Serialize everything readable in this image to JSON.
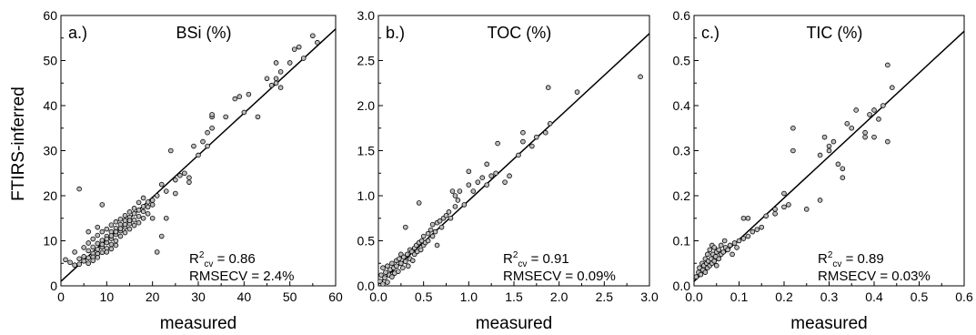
{
  "chart_data": [
    {
      "type": "scatter",
      "panel_label": "a.)",
      "title": "BSi (%)",
      "xlabel": "measured",
      "ylabel": "FTIRS-inferred",
      "xlim": [
        0,
        60
      ],
      "ylim": [
        0,
        60
      ],
      "xticks": [
        "0",
        "10",
        "20",
        "30",
        "40",
        "50",
        "60"
      ],
      "yticks": [
        "0",
        "10",
        "20",
        "30",
        "40",
        "50",
        "60"
      ],
      "fit_line": [
        [
          0,
          1.0
        ],
        [
          60,
          57.0
        ]
      ],
      "stat_r2_base": "R",
      "stat_r2_sup": "2",
      "stat_r2_sub": "cv",
      "stat_r2_value": " = 0.86",
      "stat_rmse": "RMSECV = 2.4%",
      "points": [
        [
          1,
          5.8
        ],
        [
          2,
          5.2
        ],
        [
          3,
          4.6
        ],
        [
          3,
          7.5
        ],
        [
          4,
          6.0
        ],
        [
          4,
          21.5
        ],
        [
          4,
          4.8
        ],
        [
          5,
          6.5
        ],
        [
          5,
          5.5
        ],
        [
          5,
          8.5
        ],
        [
          6,
          6.2
        ],
        [
          6,
          7.8
        ],
        [
          6,
          5.0
        ],
        [
          6,
          9.5
        ],
        [
          6,
          12.0
        ],
        [
          7,
          7.2
        ],
        [
          7,
          8.6
        ],
        [
          7,
          6.4
        ],
        [
          7,
          10.4
        ],
        [
          7,
          5.6
        ],
        [
          8,
          8.1
        ],
        [
          8,
          9.4
        ],
        [
          8,
          7.1
        ],
        [
          8,
          11.2
        ],
        [
          8,
          6.3
        ],
        [
          8,
          13.0
        ],
        [
          9,
          8.6
        ],
        [
          9,
          10.1
        ],
        [
          9,
          7.4
        ],
        [
          9,
          12.0
        ],
        [
          9,
          9.2
        ],
        [
          9,
          18.0
        ],
        [
          10,
          9.6
        ],
        [
          10,
          11.0
        ],
        [
          10,
          8.3
        ],
        [
          10,
          12.6
        ],
        [
          10,
          10.4
        ],
        [
          10,
          7.5
        ],
        [
          11,
          10.5
        ],
        [
          11,
          12.0
        ],
        [
          11,
          9.2
        ],
        [
          11,
          13.5
        ],
        [
          11,
          11.1
        ],
        [
          11,
          8.2
        ],
        [
          12,
          11.4
        ],
        [
          12,
          12.8
        ],
        [
          12,
          10.0
        ],
        [
          12,
          14.2
        ],
        [
          12,
          12.0
        ],
        [
          12,
          9.0
        ],
        [
          13,
          12.2
        ],
        [
          13,
          13.6
        ],
        [
          13,
          11.0
        ],
        [
          13,
          14.8
        ],
        [
          13,
          12.7
        ],
        [
          14,
          13.0
        ],
        [
          14,
          14.5
        ],
        [
          14,
          11.8
        ],
        [
          14,
          15.6
        ],
        [
          14,
          13.6
        ],
        [
          15,
          13.8
        ],
        [
          15,
          15.2
        ],
        [
          15,
          12.6
        ],
        [
          15,
          16.4
        ],
        [
          15,
          14.5
        ],
        [
          16,
          14.6
        ],
        [
          16,
          16.0
        ],
        [
          16,
          13.4
        ],
        [
          16,
          17.2
        ],
        [
          17,
          15.4
        ],
        [
          17,
          16.8
        ],
        [
          17,
          14.0
        ],
        [
          17,
          18.5
        ],
        [
          18,
          16.5
        ],
        [
          18,
          15.0
        ],
        [
          18,
          19.5
        ],
        [
          18,
          17.6
        ],
        [
          19,
          17.5
        ],
        [
          19,
          16.0
        ],
        [
          19,
          18.6
        ],
        [
          20,
          15.0
        ],
        [
          20,
          18.0
        ],
        [
          20,
          19.0
        ],
        [
          21,
          7.5
        ],
        [
          21,
          20.0
        ],
        [
          22,
          11.0
        ],
        [
          22,
          22.5
        ],
        [
          23,
          21.0
        ],
        [
          23,
          15.0
        ],
        [
          24,
          30.0
        ],
        [
          25,
          20.5
        ],
        [
          25,
          23.5
        ],
        [
          26,
          24.5
        ],
        [
          27,
          25.0
        ],
        [
          28,
          23.0
        ],
        [
          28,
          24.0
        ],
        [
          29,
          31.0
        ],
        [
          30,
          29.0
        ],
        [
          31,
          32.0
        ],
        [
          32,
          31.0
        ],
        [
          32,
          34.0
        ],
        [
          33,
          35.0
        ],
        [
          33,
          37.5
        ],
        [
          33,
          38.0
        ],
        [
          36,
          37.5
        ],
        [
          38,
          41.5
        ],
        [
          39,
          42.0
        ],
        [
          40,
          38.5
        ],
        [
          41,
          42.5
        ],
        [
          43,
          37.5
        ],
        [
          45,
          46.0
        ],
        [
          46,
          44.5
        ],
        [
          47,
          46.0
        ],
        [
          47,
          49.5
        ],
        [
          47,
          45.0
        ],
        [
          48,
          47.5
        ],
        [
          48,
          44.0
        ],
        [
          50,
          49.5
        ],
        [
          51,
          52.5
        ],
        [
          52,
          53.0
        ],
        [
          53,
          50.5
        ],
        [
          55,
          55.5
        ],
        [
          56,
          54.0
        ]
      ]
    },
    {
      "type": "scatter",
      "panel_label": "b.)",
      "title": "TOC (%)",
      "xlabel": "measured",
      "ylabel": "",
      "xlim": [
        0,
        3.0
      ],
      "ylim": [
        0,
        3.0
      ],
      "xticks": [
        "0.0",
        "0.5",
        "1.0",
        "1.5",
        "2.0",
        "2.5",
        "3.0"
      ],
      "yticks": [
        "0.0",
        "0.5",
        "1.0",
        "1.5",
        "2.0",
        "2.5",
        "3.0"
      ],
      "fit_line": [
        [
          0,
          0.02
        ],
        [
          3.0,
          2.8
        ]
      ],
      "stat_r2_base": "R",
      "stat_r2_sup": "2",
      "stat_r2_sub": "cv",
      "stat_r2_value": " = 0.91",
      "stat_rmse": "RMSECV = 0.09%",
      "points": [
        [
          0.02,
          0.05
        ],
        [
          0.03,
          0.12
        ],
        [
          0.05,
          0.02
        ],
        [
          0.05,
          0.2
        ],
        [
          0.07,
          0.09
        ],
        [
          0.08,
          0.15
        ],
        [
          0.1,
          0.04
        ],
        [
          0.1,
          0.22
        ],
        [
          0.12,
          0.12
        ],
        [
          0.13,
          0.18
        ],
        [
          0.15,
          0.1
        ],
        [
          0.15,
          0.25
        ],
        [
          0.17,
          0.2
        ],
        [
          0.18,
          0.14
        ],
        [
          0.2,
          0.28
        ],
        [
          0.2,
          0.22
        ],
        [
          0.22,
          0.16
        ],
        [
          0.23,
          0.3
        ],
        [
          0.25,
          0.25
        ],
        [
          0.25,
          0.35
        ],
        [
          0.27,
          0.2
        ],
        [
          0.28,
          0.32
        ],
        [
          0.3,
          0.27
        ],
        [
          0.3,
          0.65
        ],
        [
          0.32,
          0.35
        ],
        [
          0.33,
          0.22
        ],
        [
          0.35,
          0.4
        ],
        [
          0.35,
          0.3
        ],
        [
          0.37,
          0.38
        ],
        [
          0.38,
          0.28
        ],
        [
          0.4,
          0.42
        ],
        [
          0.4,
          0.35
        ],
        [
          0.42,
          0.45
        ],
        [
          0.43,
          0.38
        ],
        [
          0.45,
          0.92
        ],
        [
          0.45,
          0.48
        ],
        [
          0.47,
          0.4
        ],
        [
          0.48,
          0.5
        ],
        [
          0.5,
          0.45
        ],
        [
          0.5,
          0.55
        ],
        [
          0.52,
          0.48
        ],
        [
          0.55,
          0.58
        ],
        [
          0.55,
          0.5
        ],
        [
          0.58,
          0.62
        ],
        [
          0.6,
          0.55
        ],
        [
          0.6,
          0.68
        ],
        [
          0.63,
          0.6
        ],
        [
          0.65,
          0.7
        ],
        [
          0.65,
          0.45
        ],
        [
          0.68,
          0.72
        ],
        [
          0.7,
          0.65
        ],
        [
          0.72,
          0.75
        ],
        [
          0.75,
          0.78
        ],
        [
          0.78,
          0.82
        ],
        [
          0.8,
          0.75
        ],
        [
          0.82,
          1.05
        ],
        [
          0.85,
          0.88
        ],
        [
          0.85,
          1.0
        ],
        [
          0.88,
          0.95
        ],
        [
          0.9,
          1.05
        ],
        [
          0.95,
          0.9
        ],
        [
          1.0,
          1.27
        ],
        [
          1.0,
          1.12
        ],
        [
          1.05,
          1.05
        ],
        [
          1.1,
          1.15
        ],
        [
          1.15,
          1.2
        ],
        [
          1.2,
          1.12
        ],
        [
          1.2,
          1.35
        ],
        [
          1.25,
          1.22
        ],
        [
          1.3,
          1.25
        ],
        [
          1.32,
          1.58
        ],
        [
          1.4,
          1.15
        ],
        [
          1.45,
          1.22
        ],
        [
          1.55,
          1.45
        ],
        [
          1.6,
          1.7
        ],
        [
          1.6,
          1.6
        ],
        [
          1.7,
          1.55
        ],
        [
          1.75,
          1.65
        ],
        [
          1.85,
          1.7
        ],
        [
          1.88,
          2.2
        ],
        [
          1.9,
          1.8
        ],
        [
          2.2,
          2.15
        ],
        [
          2.9,
          2.32
        ]
      ]
    },
    {
      "type": "scatter",
      "panel_label": "c.)",
      "title": "TIC (%)",
      "xlabel": "measured",
      "ylabel": "",
      "xlim": [
        0,
        0.6
      ],
      "ylim": [
        0,
        0.6
      ],
      "xticks": [
        "0.0",
        "0.1",
        "0.2",
        "0.3",
        "0.4",
        "0.5",
        "0.6"
      ],
      "yticks": [
        "0.0",
        "0.1",
        "0.2",
        "0.3",
        "0.4",
        "0.5",
        "0.6"
      ],
      "fit_line": [
        [
          0,
          0.01
        ],
        [
          0.6,
          0.565
        ]
      ],
      "stat_r2_base": "R",
      "stat_r2_sup": "2",
      "stat_r2_sub": "cv",
      "stat_r2_value": " = 0.89",
      "stat_rmse": "RMSECV = 0.03%",
      "points": [
        [
          0.005,
          0.02
        ],
        [
          0.01,
          0.03
        ],
        [
          0.012,
          0.04
        ],
        [
          0.015,
          0.025
        ],
        [
          0.018,
          0.05
        ],
        [
          0.02,
          0.035
        ],
        [
          0.022,
          0.045
        ],
        [
          0.025,
          0.06
        ],
        [
          0.025,
          0.03
        ],
        [
          0.028,
          0.05
        ],
        [
          0.03,
          0.04
        ],
        [
          0.03,
          0.07
        ],
        [
          0.032,
          0.055
        ],
        [
          0.035,
          0.045
        ],
        [
          0.035,
          0.08
        ],
        [
          0.038,
          0.06
        ],
        [
          0.04,
          0.05
        ],
        [
          0.04,
          0.09
        ],
        [
          0.042,
          0.07
        ],
        [
          0.045,
          0.055
        ],
        [
          0.045,
          0.085
        ],
        [
          0.048,
          0.065
        ],
        [
          0.05,
          0.075
        ],
        [
          0.05,
          0.045
        ],
        [
          0.055,
          0.08
        ],
        [
          0.055,
          0.06
        ],
        [
          0.06,
          0.07
        ],
        [
          0.06,
          0.09
        ],
        [
          0.065,
          0.075
        ],
        [
          0.068,
          0.1
        ],
        [
          0.07,
          0.085
        ],
        [
          0.075,
          0.08
        ],
        [
          0.08,
          0.09
        ],
        [
          0.085,
          0.07
        ],
        [
          0.09,
          0.095
        ],
        [
          0.095,
          0.085
        ],
        [
          0.1,
          0.1
        ],
        [
          0.11,
          0.105
        ],
        [
          0.11,
          0.15
        ],
        [
          0.12,
          0.11
        ],
        [
          0.12,
          0.15
        ],
        [
          0.13,
          0.12
        ],
        [
          0.14,
          0.125
        ],
        [
          0.15,
          0.13
        ],
        [
          0.16,
          0.155
        ],
        [
          0.18,
          0.16
        ],
        [
          0.18,
          0.17
        ],
        [
          0.2,
          0.205
        ],
        [
          0.2,
          0.175
        ],
        [
          0.21,
          0.18
        ],
        [
          0.22,
          0.35
        ],
        [
          0.22,
          0.3
        ],
        [
          0.25,
          0.17
        ],
        [
          0.28,
          0.29
        ],
        [
          0.28,
          0.19
        ],
        [
          0.29,
          0.33
        ],
        [
          0.3,
          0.31
        ],
        [
          0.3,
          0.3
        ],
        [
          0.31,
          0.32
        ],
        [
          0.32,
          0.27
        ],
        [
          0.33,
          0.26
        ],
        [
          0.33,
          0.24
        ],
        [
          0.34,
          0.36
        ],
        [
          0.35,
          0.35
        ],
        [
          0.36,
          0.39
        ],
        [
          0.38,
          0.34
        ],
        [
          0.38,
          0.33
        ],
        [
          0.39,
          0.38
        ],
        [
          0.4,
          0.39
        ],
        [
          0.4,
          0.33
        ],
        [
          0.41,
          0.37
        ],
        [
          0.42,
          0.4
        ],
        [
          0.43,
          0.32
        ],
        [
          0.43,
          0.49
        ],
        [
          0.44,
          0.44
        ]
      ]
    }
  ]
}
